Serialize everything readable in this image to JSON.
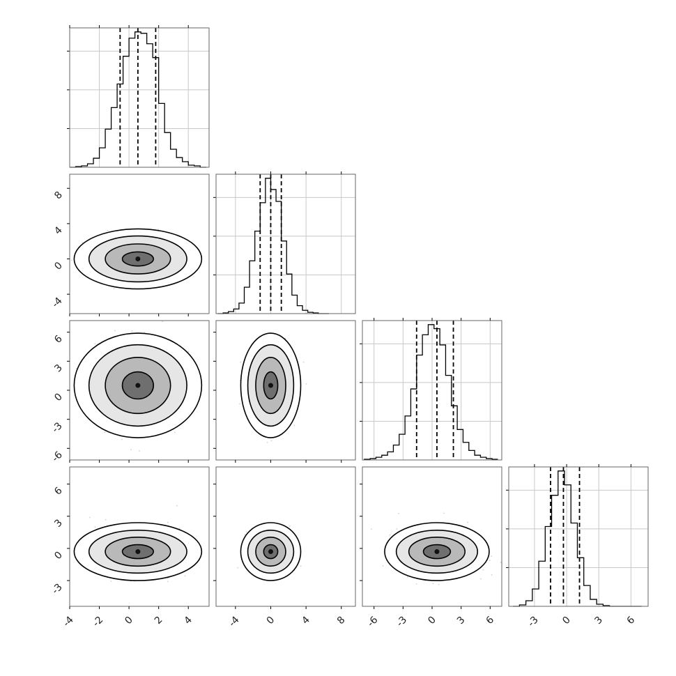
{
  "figure": {
    "type": "corner-plot",
    "variables": 4,
    "colors": {
      "line": "#000000",
      "grid": "#c8c8c8",
      "frame": "#666666",
      "points": "#9a9a9a",
      "background": "#ffffff"
    },
    "quantile_line_style": "dashed"
  },
  "chart_data": [
    {
      "type": "bar",
      "name": "hist-var1",
      "xlim": [
        -4,
        5.4
      ],
      "bins": [
        -4.0,
        -3.6,
        -3.2,
        -2.8,
        -2.4,
        -2.0,
        -1.6,
        -1.2,
        -0.8,
        -0.4,
        0.0,
        0.4,
        0.8,
        1.2,
        1.6,
        2.0,
        2.4,
        2.8,
        3.2,
        3.6,
        4.0,
        4.4,
        4.8,
        5.2
      ],
      "counts": [
        0,
        1,
        2,
        5,
        13,
        28,
        55,
        86,
        120,
        160,
        186,
        195,
        193,
        178,
        158,
        92,
        50,
        26,
        14,
        8,
        3,
        2,
        0
      ],
      "quantiles": [
        -0.6,
        0.6,
        1.8
      ],
      "xticks": [
        "-4",
        "-2",
        "0",
        "2",
        "4"
      ],
      "tick_values": [
        -4,
        -2,
        0,
        2,
        4
      ]
    },
    {
      "type": "scatter",
      "name": "var1-vs-var2",
      "xlim": [
        -4,
        5.4
      ],
      "ylim": [
        -6.2,
        9.6
      ],
      "center": [
        0.6,
        0.0
      ],
      "spread": [
        1.1,
        0.9
      ],
      "contour_levels": [
        [
          1.05,
          0.8
        ],
        [
          2.2,
          1.7
        ],
        [
          3.3,
          2.6
        ],
        [
          4.3,
          3.4
        ]
      ],
      "yticks": [
        "-4",
        "0",
        "4",
        "8"
      ],
      "ytick_values": [
        -4,
        0,
        4,
        8
      ]
    },
    {
      "type": "bar",
      "name": "hist-var2",
      "xlim": [
        -6.2,
        9.6
      ],
      "bins": [
        -6.0,
        -5.4,
        -4.8,
        -4.2,
        -3.6,
        -3.0,
        -2.4,
        -1.8,
        -1.2,
        -0.6,
        0.0,
        0.6,
        1.2,
        1.8,
        2.4,
        3.0,
        3.6,
        4.2,
        4.8,
        5.4,
        6.0,
        6.6
      ],
      "counts": [
        0,
        1,
        3,
        7,
        16,
        40,
        80,
        125,
        168,
        205,
        188,
        170,
        110,
        60,
        28,
        12,
        5,
        2,
        1,
        0,
        0
      ],
      "quantiles": [
        -1.2,
        0.0,
        1.2
      ],
      "xticks": [
        "-4",
        "0",
        "4",
        "8"
      ],
      "tick_values": [
        -4,
        0,
        4,
        8
      ]
    },
    {
      "type": "scatter",
      "name": "var1-vs-var3",
      "xlim": [
        -4,
        5.4
      ],
      "ylim": [
        -7.2,
        7.2
      ],
      "center": [
        0.6,
        0.5
      ],
      "spread": [
        1.1,
        1.6
      ],
      "contour_levels": [
        [
          1.05,
          1.4
        ],
        [
          2.2,
          2.9
        ],
        [
          3.3,
          4.2
        ],
        [
          4.3,
          5.4
        ]
      ],
      "yticks": [
        "-6",
        "-3",
        "0",
        "3",
        "6"
      ],
      "ytick_values": [
        -6,
        -3,
        0,
        3,
        6
      ]
    },
    {
      "type": "scatter",
      "name": "var2-vs-var3",
      "xlim": [
        -6.2,
        9.6
      ],
      "ylim": [
        -7.2,
        7.2
      ],
      "center": [
        0.0,
        0.5
      ],
      "spread": [
        0.9,
        1.6
      ],
      "contour_levels": [
        [
          0.8,
          1.4
        ],
        [
          1.7,
          2.9
        ],
        [
          2.6,
          4.2
        ],
        [
          3.4,
          5.4
        ]
      ]
    },
    {
      "type": "bar",
      "name": "hist-var3",
      "xlim": [
        -7.2,
        7.2
      ],
      "bins": [
        -7.0,
        -6.4,
        -5.8,
        -5.2,
        -4.6,
        -4.0,
        -3.4,
        -2.8,
        -2.2,
        -1.6,
        -1.0,
        -0.4,
        0.2,
        0.8,
        1.4,
        2.0,
        2.6,
        3.2,
        3.8,
        4.4,
        5.0,
        5.6,
        6.2,
        6.8
      ],
      "counts": [
        1,
        2,
        4,
        7,
        12,
        22,
        38,
        65,
        105,
        155,
        185,
        200,
        194,
        170,
        125,
        80,
        45,
        26,
        14,
        7,
        4,
        2,
        1
      ],
      "quantiles": [
        -1.6,
        0.5,
        2.2
      ],
      "xticks": [
        "-6",
        "-3",
        "0",
        "3",
        "6"
      ],
      "tick_values": [
        -6,
        -3,
        0,
        3,
        6
      ]
    },
    {
      "type": "scatter",
      "name": "var1-vs-var4",
      "xlim": [
        -4,
        5.4
      ],
      "ylim": [
        -5.4,
        7.6
      ],
      "center": [
        0.6,
        -0.3
      ],
      "spread": [
        1.1,
        0.8
      ],
      "contour_levels": [
        [
          1.05,
          0.65
        ],
        [
          2.2,
          1.35
        ],
        [
          3.3,
          2.0
        ],
        [
          4.3,
          2.7
        ]
      ],
      "yticks": [
        "-3",
        "0",
        "3",
        "6"
      ],
      "ytick_values": [
        -3,
        0,
        3,
        6
      ]
    },
    {
      "type": "scatter",
      "name": "var2-vs-var4",
      "xlim": [
        -6.2,
        9.6
      ],
      "ylim": [
        -5.4,
        7.6
      ],
      "center": [
        0.0,
        -0.3
      ],
      "spread": [
        0.9,
        0.8
      ],
      "contour_levels": [
        [
          0.8,
          0.65
        ],
        [
          1.7,
          1.35
        ],
        [
          2.6,
          2.0
        ],
        [
          3.4,
          2.7
        ]
      ]
    },
    {
      "type": "scatter",
      "name": "var3-vs-var4",
      "xlim": [
        -7.2,
        7.2
      ],
      "ylim": [
        -5.4,
        7.6
      ],
      "center": [
        0.5,
        -0.3
      ],
      "spread": [
        1.6,
        0.8
      ],
      "contour_levels": [
        [
          1.4,
          0.65
        ],
        [
          2.9,
          1.35
        ],
        [
          4.2,
          2.0
        ],
        [
          5.4,
          2.7
        ]
      ]
    },
    {
      "type": "bar",
      "name": "hist-var4",
      "xlim": [
        -5.4,
        7.6
      ],
      "bins": [
        -5.0,
        -4.4,
        -3.8,
        -3.2,
        -2.6,
        -2.0,
        -1.4,
        -0.8,
        -0.2,
        0.4,
        1.0,
        1.6,
        2.2,
        2.8,
        3.4,
        4.0,
        4.6,
        5.2,
        5.8,
        6.4,
        7.0
      ],
      "counts": [
        0,
        2,
        8,
        25,
        65,
        115,
        160,
        195,
        175,
        120,
        70,
        30,
        10,
        3,
        1,
        0,
        0,
        0,
        0,
        0
      ],
      "quantiles": [
        -1.5,
        -0.3,
        1.2
      ],
      "xticks": [
        "-3",
        "0",
        "3",
        "6"
      ],
      "tick_values": [
        -3,
        0,
        3,
        6
      ]
    }
  ]
}
